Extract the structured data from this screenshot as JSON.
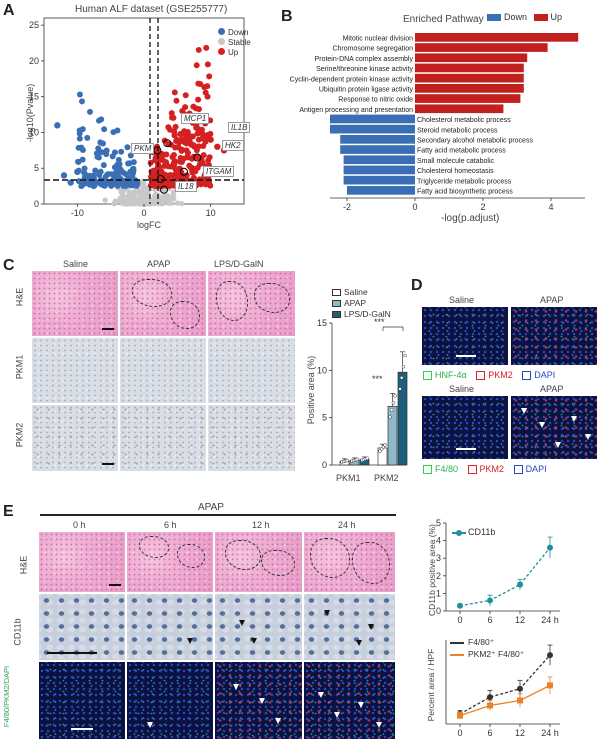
{
  "panels": {
    "A": "A",
    "B": "B",
    "C": "C",
    "D": "D",
    "E": "E"
  },
  "panel_a": {
    "title": "Human ALF dataset (GSE255777)",
    "xlabel": "logFC",
    "ylabel": "-log10(Pvalue)",
    "legend": [
      {
        "label": "Down",
        "color": "#3a6fb5"
      },
      {
        "label": "Stable",
        "color": "#c8c8c8"
      },
      {
        "label": "Up",
        "color": "#d42020"
      }
    ],
    "gene_labels": [
      "MCP1",
      "IL1B",
      "PKM",
      "HK2",
      "ITGAM",
      "IL18"
    ],
    "x_ticks": [
      "-10",
      "0",
      "10"
    ],
    "y_ticks": [
      "0",
      "5",
      "10",
      "15",
      "20",
      "25"
    ],
    "colors": {
      "down": "#3a6fb5",
      "stable": "#c8c8c8",
      "up": "#d42020"
    }
  },
  "panel_b": {
    "title": "Enriched Pathway",
    "legend": [
      {
        "label": "Down",
        "color": "#3a6fb5"
      },
      {
        "label": "Up",
        "color": "#c2201f"
      }
    ],
    "xlabel": "-log(p.adjust)",
    "x_ticks": [
      "-2",
      "0",
      "2",
      "4"
    ],
    "up_terms": [
      "Mitotic nuclear division",
      "Chromosome segregation",
      "Protein-DNA complex assembly",
      "Serine/threonine kinase activity",
      "Cyclin-dependent protein kinase activity",
      "Ubiquitin protein ligase activity",
      "Response to nitric oxide",
      "Antigen processing and presentation"
    ],
    "down_terms": [
      "Cholesterol metabolic process",
      "Steroid metabolic process",
      "Secondary alcohol metabolic process",
      "Fatty acid metabolic process",
      "Small molecule catabolic",
      "Cholesterol homeostasis",
      "Triglyceride metabolic process",
      "Fatty acid biosynthetic process"
    ]
  },
  "panel_c": {
    "columns": [
      "Saline",
      "APAP",
      "LPS/D-GalN"
    ],
    "rows": [
      "H&E",
      "PKM1",
      "PKM2"
    ],
    "legend": [
      "Saline",
      "APAP",
      "LPS/D-GalN"
    ],
    "ylabel": "Positive area (%)",
    "y_ticks": [
      "0",
      "5",
      "10",
      "15"
    ],
    "groups": [
      "PKM1",
      "PKM2"
    ],
    "sig": [
      "***",
      "***"
    ]
  },
  "panel_d": {
    "top_columns": [
      "Saline",
      "APAP"
    ],
    "top_legend": [
      "HNF-4α",
      "PKM2",
      "DAPI"
    ],
    "bottom_columns": [
      "Saline",
      "APAP"
    ],
    "bottom_legend": [
      "F4/80",
      "PKM2",
      "DAPI"
    ],
    "legend_colors": [
      "#2fd04a",
      "#e0202a",
      "#2348c8"
    ]
  },
  "panel_e": {
    "header": "APAP",
    "timepoints": [
      "0 h",
      "6 h",
      "12 h",
      "24 h"
    ],
    "rows": [
      "H&E",
      "CD11b",
      "F4/80/PKM2/DAPI"
    ],
    "chart1_legend": "CD11b",
    "chart1_ylabel": "CD11b positive area (%)",
    "chart1_y_ticks": [
      "0",
      "1",
      "2",
      "3",
      "4",
      "5"
    ],
    "chart2_legend": [
      "F4/80⁺",
      "PKM2⁺ F4/80⁺"
    ],
    "chart2_ylabel": "Percent area / HPF",
    "x_ticks": [
      "0",
      "6",
      "12",
      "24 h"
    ]
  },
  "chart_data": [
    {
      "type": "scatter",
      "title": "Human ALF dataset (GSE255777)",
      "xlabel": "logFC",
      "ylabel": "-log10(Pvalue)",
      "xlim": [
        -15,
        15
      ],
      "ylim": [
        0,
        26
      ],
      "highlighted_genes": [
        {
          "name": "MCP1",
          "x": 3.5,
          "y": 8.5
        },
        {
          "name": "IL1B",
          "x": 8,
          "y": 6.5
        },
        {
          "name": "PKM",
          "x": 2,
          "y": 7.5
        },
        {
          "name": "HK2",
          "x": 6,
          "y": 4.5
        },
        {
          "name": "ITGAM",
          "x": 3,
          "y": 2
        },
        {
          "name": "IL18",
          "x": 2.5,
          "y": 3.5
        }
      ]
    },
    {
      "type": "bar",
      "title": "Enriched Pathway",
      "xlabel": "-log(p.adjust)",
      "xlim": [
        -2.5,
        5
      ],
      "categories": [
        "Mitotic nuclear division",
        "Chromosome segregation",
        "Protein-DNA complex assembly",
        "Serine/threonine kinase activity",
        "Cyclin-dependent protein kinase activity",
        "Ubiquitin protein ligase activity",
        "Response to nitric oxide",
        "Antigen processing and presentation",
        "Cholesterol metabolic process",
        "Steroid metabolic process",
        "Secondary alcohol metabolic process",
        "Fatty acid metabolic process",
        "Small molecule catabolic",
        "Cholesterol homeostasis",
        "Triglyceride metabolic process",
        "Fatty acid biosynthetic process"
      ],
      "series": [
        {
          "name": "Up",
          "values": [
            4.8,
            3.9,
            3.3,
            3.2,
            3.2,
            3.2,
            3.1,
            2.6,
            null,
            null,
            null,
            null,
            null,
            null,
            null,
            null
          ]
        },
        {
          "name": "Down",
          "values": [
            null,
            null,
            null,
            null,
            null,
            null,
            null,
            null,
            -2.5,
            -2.5,
            -2.2,
            -2.2,
            -2.1,
            -2.1,
            -2.1,
            -2.0
          ]
        }
      ]
    },
    {
      "type": "bar",
      "ylabel": "Positive area (%)",
      "ylim": [
        0,
        15
      ],
      "categories": [
        "PKM1",
        "PKM2"
      ],
      "series": [
        {
          "name": "Saline",
          "values": [
            0.4,
            1.8
          ]
        },
        {
          "name": "APAP",
          "values": [
            0.5,
            6.2
          ]
        },
        {
          "name": "LPS/D-GalN",
          "values": [
            0.6,
            9.8
          ]
        }
      ]
    },
    {
      "type": "line",
      "ylabel": "CD11b positive area (%)",
      "x": [
        "0",
        "6",
        "12",
        "24 h"
      ],
      "ylim": [
        0,
        5
      ],
      "series": [
        {
          "name": "CD11b",
          "values": [
            0.3,
            0.6,
            1.5,
            3.6
          ],
          "errors": [
            0.1,
            0.3,
            0.3,
            0.6
          ]
        }
      ]
    },
    {
      "type": "line",
      "ylabel": "Percent area / HPF",
      "x": [
        "0",
        "6",
        "12",
        "24 h"
      ],
      "ylim": [
        0,
        5
      ],
      "series": [
        {
          "name": "F4/80⁺",
          "values": [
            0.6,
            1.6,
            2.1,
            4.1
          ],
          "errors": [
            0.2,
            0.4,
            0.5,
            0.6
          ]
        },
        {
          "name": "PKM2⁺ F4/80⁺",
          "values": [
            0.5,
            1.1,
            1.4,
            2.3
          ],
          "errors": [
            0.2,
            0.3,
            0.4,
            0.5
          ]
        }
      ]
    }
  ]
}
